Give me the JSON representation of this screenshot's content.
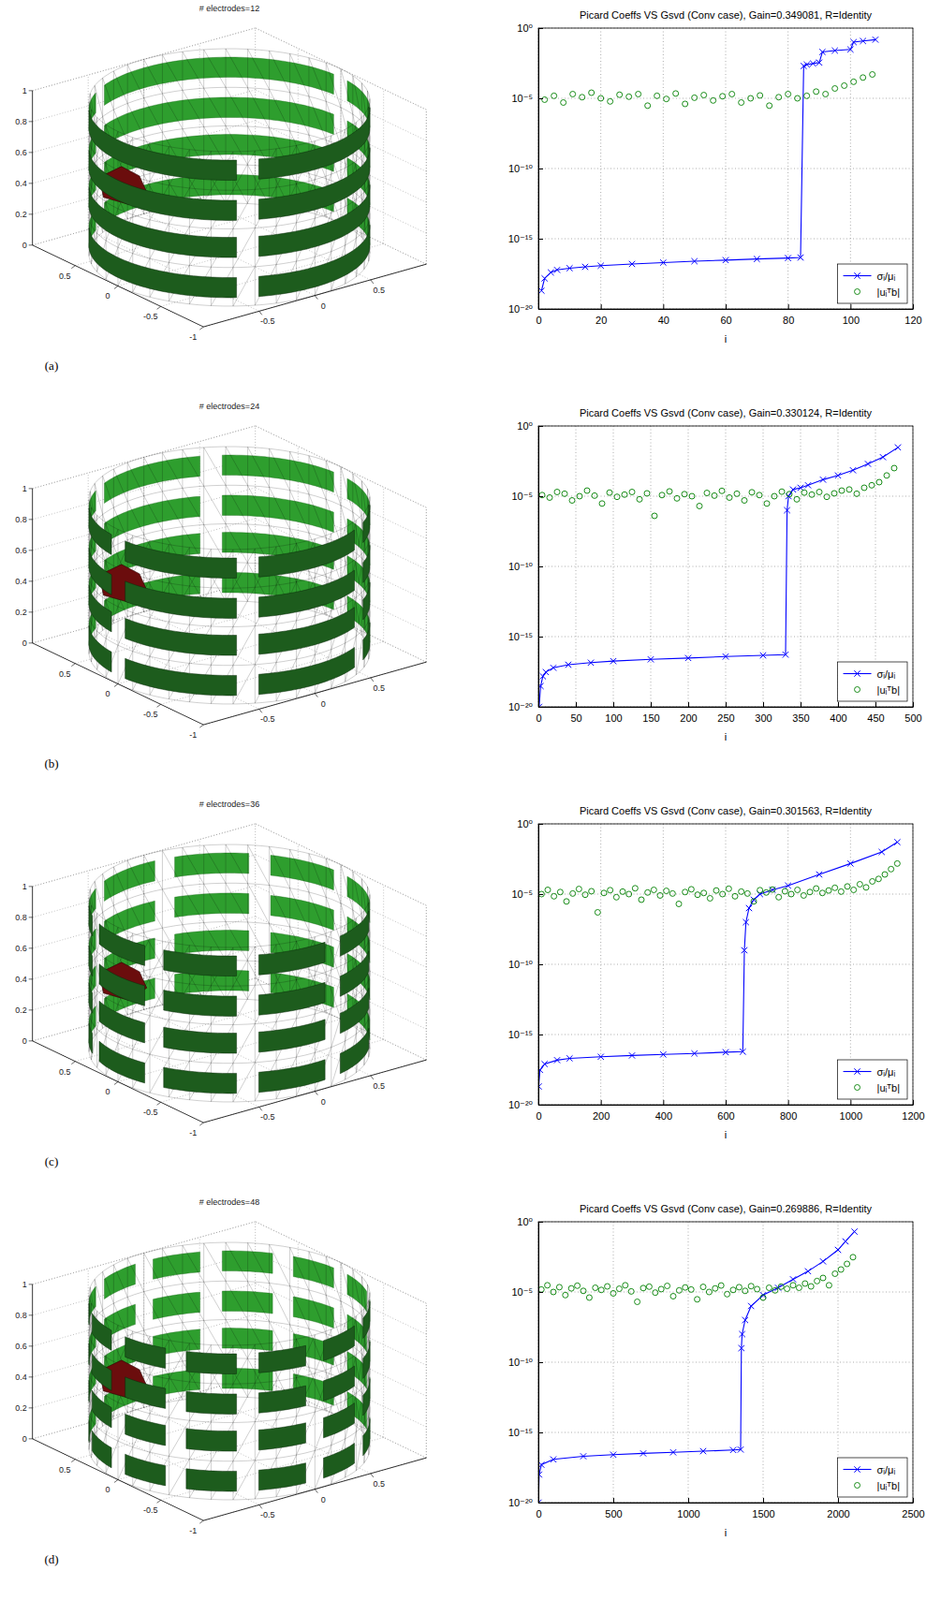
{
  "chart_data": [
    {
      "type": "mesh3d",
      "title": "# electrodes=12",
      "label": "(a)",
      "xlim": [
        -1,
        1
      ],
      "ylim": [
        -1,
        1
      ],
      "zlim": [
        0,
        1
      ],
      "xticks": [
        -0.5,
        0,
        0.5
      ],
      "yticks": [
        -1,
        -0.5,
        0,
        0.5
      ],
      "zticks": [
        0,
        0.2,
        0.4,
        0.6,
        0.8,
        1
      ],
      "grid": true
    },
    {
      "type": "line",
      "title": "Picard Coeffs VS Gsvd (Conv case), Gain=0.349081, R=Identity",
      "xlabel": "i",
      "xlim": [
        0,
        120
      ],
      "xticks": [
        0,
        20,
        40,
        60,
        80,
        100,
        120
      ],
      "ylim": [
        1e-20,
        1
      ],
      "yticks": [
        {
          "value": 1e-20,
          "label": "10⁻²⁰"
        },
        {
          "value": 1e-15,
          "label": "10⁻¹⁵"
        },
        {
          "value": 1e-10,
          "label": "10⁻¹⁰"
        },
        {
          "value": 1e-05,
          "label": "10⁻⁵"
        },
        {
          "value": 1,
          "label": "10⁰"
        }
      ],
      "log": "y",
      "grid": true,
      "legend": "lower right",
      "series": [
        {
          "name": "σᵢ/μᵢ",
          "type": "line",
          "color": "#0000ff",
          "marker": "x",
          "line_style": "solid",
          "x": [
            1,
            2,
            4,
            6,
            10,
            15,
            20,
            30,
            40,
            50,
            60,
            70,
            80,
            84,
            85,
            86,
            88,
            90,
            91,
            95,
            100,
            101,
            104,
            108
          ],
          "values": [
            2e-19,
            1.5e-18,
            4e-18,
            6e-18,
            8e-18,
            1e-17,
            1.2e-17,
            1.6e-17,
            2e-17,
            2.5e-17,
            3e-17,
            3.6e-17,
            4.2e-17,
            4.6e-17,
            0.002,
            0.0025,
            0.003,
            0.0035,
            0.02,
            0.025,
            0.03,
            0.1,
            0.12,
            0.15
          ]
        },
        {
          "name": "|uᵢᵀb|",
          "type": "scatter",
          "color": "#008000",
          "marker": "circle",
          "line_style": "none",
          "x": [
            2,
            5,
            8,
            11,
            14,
            17,
            20,
            23,
            26,
            29,
            32,
            35,
            38,
            41,
            44,
            47,
            50,
            53,
            56,
            59,
            62,
            65,
            68,
            71,
            74,
            77,
            80,
            83,
            86,
            89,
            92,
            95,
            98,
            101,
            104,
            107
          ],
          "values": [
            8e-06,
            1.5e-05,
            5e-06,
            2e-05,
            1.2e-05,
            2.5e-05,
            1e-05,
            6e-06,
            1.8e-05,
            1.3e-05,
            2e-05,
            3e-06,
            1.5e-05,
            9e-06,
            2.2e-05,
            4e-06,
            1.1e-05,
            1.7e-05,
            7e-06,
            1.4e-05,
            2e-05,
            5e-06,
            1e-05,
            1.6e-05,
            3e-06,
            1.2e-05,
            2e-05,
            1e-05,
            1.5e-05,
            3e-05,
            2e-05,
            5e-05,
            8e-05,
            0.00015,
            0.0003,
            0.0005
          ]
        }
      ]
    },
    {
      "type": "mesh3d",
      "title": "# electrodes=24",
      "label": "(b)",
      "xlim": [
        -1,
        1
      ],
      "ylim": [
        -1,
        1
      ],
      "zlim": [
        0,
        1
      ],
      "xticks": [
        -0.5,
        0,
        0.5
      ],
      "yticks": [
        -1,
        -0.5,
        0,
        0.5
      ],
      "zticks": [
        0,
        0.2,
        0.4,
        0.6,
        0.8,
        1
      ],
      "grid": true
    },
    {
      "type": "line",
      "title": "Picard Coeffs VS Gsvd (Conv case), Gain=0.330124, R=Identity",
      "xlabel": "i",
      "xlim": [
        0,
        500
      ],
      "xticks": [
        0,
        50,
        100,
        150,
        200,
        250,
        300,
        350,
        400,
        450,
        500
      ],
      "ylim": [
        1e-20,
        1
      ],
      "yticks": [
        {
          "value": 1e-20,
          "label": "10⁻²⁰"
        },
        {
          "value": 1e-15,
          "label": "10⁻¹⁵"
        },
        {
          "value": 1e-10,
          "label": "10⁻¹⁰"
        },
        {
          "value": 1e-05,
          "label": "10⁻⁵"
        },
        {
          "value": 1,
          "label": "10⁰"
        }
      ],
      "log": "y",
      "grid": true,
      "legend": "lower right",
      "series": [
        {
          "name": "σᵢ/μᵢ",
          "type": "line",
          "color": "#0000ff",
          "marker": "x",
          "line_style": "solid",
          "x": [
            1,
            3,
            6,
            10,
            20,
            40,
            70,
            100,
            150,
            200,
            250,
            300,
            330,
            332,
            334,
            340,
            350,
            360,
            380,
            400,
            420,
            440,
            460,
            480
          ],
          "values": [
            1e-20,
            3e-19,
            1.5e-18,
            3e-18,
            6e-18,
            1e-17,
            1.4e-17,
            1.8e-17,
            2.4e-17,
            3e-17,
            3.8e-17,
            4.6e-17,
            5.2e-17,
            1e-06,
            1e-05,
            3e-05,
            4e-05,
            6e-05,
            0.00015,
            0.0003,
            0.0007,
            0.002,
            0.006,
            0.03
          ]
        },
        {
          "name": "|uᵢᵀb|",
          "type": "scatter",
          "color": "#008000",
          "marker": "circle",
          "line_style": "none",
          "x": [
            5,
            15,
            25,
            35,
            45,
            55,
            65,
            75,
            85,
            95,
            105,
            115,
            125,
            135,
            145,
            155,
            165,
            175,
            185,
            195,
            205,
            215,
            225,
            235,
            245,
            255,
            265,
            275,
            285,
            295,
            305,
            315,
            325,
            335,
            345,
            355,
            365,
            375,
            385,
            395,
            405,
            415,
            425,
            435,
            445,
            455,
            465,
            475
          ],
          "values": [
            1.2e-05,
            8e-06,
            2e-05,
            1.5e-05,
            5e-06,
            1e-05,
            2.5e-05,
            1.1e-05,
            3e-06,
            1.8e-05,
            9e-06,
            1.3e-05,
            2e-05,
            6e-06,
            1.6e-05,
            4e-07,
            1.2e-05,
            2.2e-05,
            7e-06,
            1.4e-05,
            1e-05,
            2e-06,
            1.7e-05,
            1.1e-05,
            2.4e-05,
            8e-06,
            1.5e-05,
            5e-06,
            1.9e-05,
            1.2e-05,
            3e-06,
            1e-05,
            2.1e-05,
            1.4e-05,
            6e-06,
            1.8e-05,
            1.3e-05,
            2e-05,
            9e-06,
            1.6e-05,
            2.5e-05,
            3e-05,
            1.5e-05,
            4e-05,
            6e-05,
            0.0001,
            0.0003,
            0.001
          ]
        }
      ]
    },
    {
      "type": "mesh3d",
      "title": "# electrodes=36",
      "label": "(c)",
      "xlim": [
        -1,
        1
      ],
      "ylim": [
        -1,
        1
      ],
      "zlim": [
        0,
        1
      ],
      "xticks": [
        -0.5,
        0,
        0.5
      ],
      "yticks": [
        -1,
        -0.5,
        0,
        0.5
      ],
      "zticks": [
        0,
        0.2,
        0.4,
        0.6,
        0.8,
        1
      ],
      "grid": true
    },
    {
      "type": "line",
      "title": "Picard Coeffs VS Gsvd (Conv case), Gain=0.301563, R=Identity",
      "xlabel": "i",
      "xlim": [
        0,
        1200
      ],
      "xticks": [
        0,
        200,
        400,
        600,
        800,
        1000,
        1200
      ],
      "ylim": [
        1e-20,
        1
      ],
      "yticks": [
        {
          "value": 1e-20,
          "label": "10⁻²⁰"
        },
        {
          "value": 1e-15,
          "label": "10⁻¹⁵"
        },
        {
          "value": 1e-10,
          "label": "10⁻¹⁰"
        },
        {
          "value": 1e-05,
          "label": "10⁻⁵"
        },
        {
          "value": 1,
          "label": "10⁰"
        }
      ],
      "log": "y",
      "grid": true,
      "legend": "lower right",
      "series": [
        {
          "name": "σᵢ/μᵢ",
          "type": "line",
          "color": "#0000ff",
          "marker": "x",
          "line_style": "solid",
          "x": [
            1,
            5,
            20,
            60,
            100,
            200,
            300,
            400,
            500,
            600,
            655,
            660,
            665,
            675,
            690,
            710,
            750,
            800,
            900,
            1000,
            1100,
            1150
          ],
          "values": [
            2e-19,
            3e-18,
            8e-18,
            1.5e-17,
            2e-17,
            2.6e-17,
            3.2e-17,
            3.8e-17,
            4.5e-17,
            5.5e-17,
            6e-17,
            1e-09,
            1e-07,
            1e-06,
            4e-06,
            1e-05,
            2e-05,
            4e-05,
            0.00025,
            0.0015,
            0.01,
            0.05
          ]
        },
        {
          "name": "|uᵢᵀb|",
          "type": "scatter",
          "color": "#008000",
          "marker": "circle",
          "line_style": "none",
          "x": [
            10,
            30,
            50,
            70,
            90,
            110,
            130,
            150,
            170,
            190,
            210,
            230,
            250,
            270,
            290,
            310,
            330,
            350,
            370,
            390,
            410,
            430,
            450,
            470,
            490,
            510,
            530,
            550,
            570,
            590,
            610,
            630,
            650,
            670,
            690,
            710,
            730,
            750,
            770,
            790,
            810,
            830,
            850,
            870,
            890,
            910,
            930,
            950,
            970,
            990,
            1010,
            1030,
            1050,
            1070,
            1090,
            1110,
            1130,
            1150
          ],
          "values": [
            1e-05,
            2e-05,
            7e-06,
            1.4e-05,
            3e-06,
            1.1e-05,
            2.3e-05,
            9e-06,
            1.6e-05,
            5e-07,
            1.2e-05,
            1.9e-05,
            6e-06,
            1.5e-05,
            1e-05,
            2.6e-05,
            4e-06,
            1.3e-05,
            2e-05,
            8e-06,
            1.7e-05,
            1.1e-05,
            2e-06,
            1.4e-05,
            2.2e-05,
            9e-06,
            1.2e-05,
            5e-06,
            1.8e-05,
            1e-05,
            2.4e-05,
            7e-06,
            1.5e-05,
            1.1e-05,
            3e-06,
            1.9e-05,
            1.3e-05,
            2.1e-05,
            6e-06,
            1.6e-05,
            1e-05,
            2e-05,
            8e-06,
            1.4e-05,
            2.5e-05,
            1.2e-05,
            1.8e-05,
            2.8e-05,
            1.5e-05,
            3.5e-05,
            2e-05,
            5e-05,
            3e-05,
            8e-05,
            0.00012,
            0.00025,
            0.0006,
            0.0015
          ]
        }
      ]
    },
    {
      "type": "mesh3d",
      "title": "# electrodes=48",
      "label": "(d)",
      "xlim": [
        -1,
        1
      ],
      "ylim": [
        -1,
        1
      ],
      "zlim": [
        0,
        1
      ],
      "xticks": [
        -0.5,
        0,
        0.5
      ],
      "yticks": [
        -1,
        -0.5,
        0,
        0.5
      ],
      "zticks": [
        0,
        0.2,
        0.4,
        0.6,
        0.8,
        1
      ],
      "grid": true
    },
    {
      "type": "line",
      "title": "Picard Coeffs VS Gsvd (Conv case), Gain=0.269886, R=Identity",
      "xlabel": "i",
      "xlim": [
        0,
        2500
      ],
      "xticks": [
        0,
        500,
        1000,
        1500,
        2000,
        2500
      ],
      "ylim": [
        1e-20,
        1
      ],
      "yticks": [
        {
          "value": 1e-20,
          "label": "10⁻²⁰"
        },
        {
          "value": 1e-15,
          "label": "10⁻¹⁵"
        },
        {
          "value": 1e-10,
          "label": "10⁻¹⁰"
        },
        {
          "value": 1e-05,
          "label": "10⁻⁵"
        },
        {
          "value": 1,
          "label": "10⁰"
        }
      ],
      "log": "y",
      "grid": true,
      "legend": "lower right",
      "series": [
        {
          "name": "σᵢ/μᵢ",
          "type": "line",
          "color": "#0000ff",
          "marker": "x",
          "line_style": "solid",
          "x": [
            1,
            5,
            20,
            100,
            300,
            500,
            700,
            900,
            1100,
            1300,
            1350,
            1355,
            1360,
            1380,
            1420,
            1500,
            1600,
            1700,
            1800,
            1900,
            2000,
            2050,
            2110
          ],
          "values": [
            1e-20,
            1e-18,
            5e-18,
            1.2e-17,
            2e-17,
            2.6e-17,
            3.2e-17,
            3.8e-17,
            4.6e-17,
            5.6e-17,
            6e-17,
            1e-09,
            1e-08,
            1e-07,
            1e-06,
            6e-06,
            2e-05,
            8e-05,
            0.0003,
            0.0015,
            0.01,
            0.04,
            0.2
          ]
        },
        {
          "name": "|uᵢᵀb|",
          "type": "scatter",
          "color": "#008000",
          "marker": "circle",
          "line_style": "none",
          "x": [
            20,
            60,
            100,
            140,
            180,
            220,
            260,
            300,
            340,
            380,
            420,
            460,
            500,
            540,
            580,
            620,
            660,
            700,
            740,
            780,
            820,
            860,
            900,
            940,
            980,
            1020,
            1060,
            1100,
            1140,
            1180,
            1220,
            1260,
            1300,
            1340,
            1380,
            1420,
            1460,
            1500,
            1540,
            1580,
            1620,
            1660,
            1700,
            1740,
            1780,
            1820,
            1860,
            1900,
            1940,
            1980,
            2020,
            2060,
            2100
          ],
          "values": [
            1.5e-05,
            3e-05,
            1e-05,
            2.2e-05,
            6e-06,
            1.8e-05,
            2.8e-05,
            1.2e-05,
            4e-06,
            2e-05,
            1.4e-05,
            2.5e-05,
            8e-06,
            1.7e-05,
            3e-05,
            1.1e-05,
            2e-06,
            1.9e-05,
            2.4e-05,
            9e-06,
            1.6e-05,
            2.7e-05,
            5e-06,
            1.3e-05,
            2.1e-05,
            1.5e-05,
            3e-06,
            2.3e-05,
            1e-05,
            1.8e-05,
            2.9e-05,
            7e-06,
            1.4e-05,
            2.2e-05,
            1.2e-05,
            2.6e-05,
            1.6e-05,
            4e-06,
            2e-05,
            1.3e-05,
            2.4e-05,
            1.7e-05,
            3e-05,
            2e-05,
            4e-05,
            2.5e-05,
            6e-05,
            0.0001,
            3e-05,
            0.0002,
            0.0004,
            0.001,
            0.003
          ]
        }
      ]
    }
  ]
}
